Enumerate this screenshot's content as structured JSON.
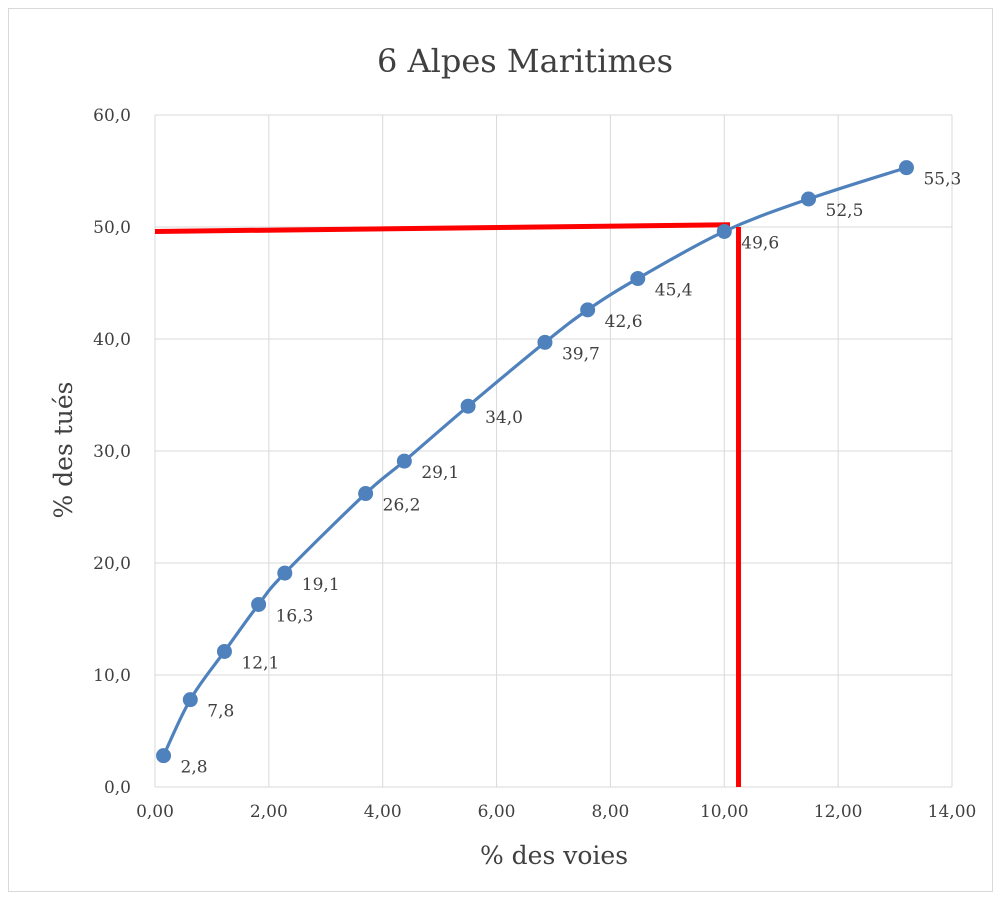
{
  "chart_data": {
    "type": "line",
    "title": "6  Alpes Maritimes",
    "xlabel": "% des voies",
    "ylabel": "% des tués",
    "xlim": [
      0,
      14
    ],
    "ylim": [
      0,
      60
    ],
    "x_ticks": [
      0,
      2,
      4,
      6,
      8,
      10,
      12,
      14
    ],
    "x_tick_labels": [
      "0,00",
      "2,00",
      "4,00",
      "6,00",
      "8,00",
      "10,00",
      "12,00",
      "14,00"
    ],
    "y_ticks": [
      0,
      10,
      20,
      30,
      40,
      50,
      60
    ],
    "y_tick_labels": [
      "0,0",
      "10,0",
      "20,0",
      "30,0",
      "40,0",
      "50,0",
      "60,0"
    ],
    "grid": true,
    "series": [
      {
        "color": "#4f81bd",
        "x": [
          0.15,
          0.62,
          1.22,
          1.82,
          2.28,
          3.7,
          4.38,
          5.5,
          6.85,
          7.6,
          8.48,
          10.0,
          11.48,
          13.2
        ],
        "y": [
          2.8,
          7.8,
          12.1,
          16.3,
          19.1,
          26.2,
          29.1,
          34.0,
          39.7,
          42.6,
          45.4,
          49.6,
          52.5,
          55.3
        ],
        "labels": [
          "2,8",
          "7,8",
          "12,1",
          "16,3",
          "19,1",
          "26,2",
          "29,1",
          "34,0",
          "39,7",
          "42,6",
          "45,4",
          "49,6",
          "52,5",
          "55,3"
        ]
      }
    ],
    "reference_lines": {
      "color": "#ff0000",
      "horizontal": {
        "x_start": 0,
        "x_end": 10.1,
        "y_start": 49.6,
        "y_end": 50.2
      },
      "vertical": {
        "x": 10.25,
        "y_start": 50.0,
        "y_end": 0
      }
    }
  }
}
